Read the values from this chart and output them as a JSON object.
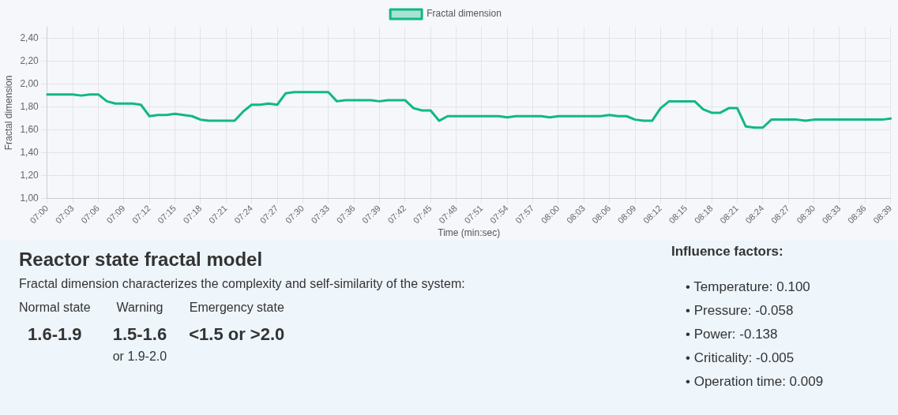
{
  "chart_data": [
    {
      "type": "line",
      "xlabel": "Time (min:sec)",
      "ylabel": "Fractal dimension",
      "categories": [
        "07:00",
        null,
        null,
        "07:03",
        null,
        null,
        "07:06",
        null,
        null,
        "07:09",
        null,
        null,
        "07:12",
        null,
        null,
        "07:15",
        null,
        null,
        "07:18",
        null,
        null,
        "07:21",
        null,
        null,
        "07:24",
        null,
        null,
        "07:27",
        null,
        null,
        "07:30",
        null,
        null,
        "07:33",
        null,
        null,
        "07:36",
        null,
        null,
        "07:39",
        null,
        null,
        "07:42",
        null,
        null,
        "07:45",
        null,
        null,
        "07:48",
        null,
        null,
        "07:51",
        null,
        null,
        "07:54",
        null,
        null,
        "07:57",
        null,
        null,
        "08:00",
        null,
        null,
        "08:03",
        null,
        null,
        "08:06",
        null,
        null,
        "08:09",
        null,
        null,
        "08:12",
        null,
        null,
        "08:15",
        null,
        null,
        "08:18",
        null,
        null,
        "08:21",
        null,
        null,
        "08:24",
        null,
        null,
        "08:27",
        null,
        null,
        "08:30",
        null,
        null,
        "08:33",
        null,
        null,
        "08:36",
        null,
        null,
        "08:39"
      ],
      "series": [
        {
          "name": "Fractal dimension",
          "color": "#10b981",
          "values": [
            1.91,
            1.91,
            1.91,
            1.91,
            1.9,
            1.91,
            1.91,
            1.85,
            1.83,
            1.83,
            1.83,
            1.82,
            1.72,
            1.73,
            1.73,
            1.74,
            1.73,
            1.72,
            1.69,
            1.68,
            1.68,
            1.68,
            1.68,
            1.76,
            1.82,
            1.82,
            1.83,
            1.82,
            1.92,
            1.93,
            1.93,
            1.93,
            1.93,
            1.93,
            1.85,
            1.86,
            1.86,
            1.86,
            1.86,
            1.85,
            1.86,
            1.86,
            1.86,
            1.79,
            1.77,
            1.77,
            1.68,
            1.72,
            1.72,
            1.72,
            1.72,
            1.72,
            1.72,
            1.72,
            1.71,
            1.72,
            1.72,
            1.72,
            1.72,
            1.71,
            1.72,
            1.72,
            1.72,
            1.72,
            1.72,
            1.72,
            1.73,
            1.72,
            1.72,
            1.69,
            1.68,
            1.68,
            1.79,
            1.85,
            1.85,
            1.85,
            1.85,
            1.78,
            1.75,
            1.75,
            1.79,
            1.79,
            1.63,
            1.62,
            1.62,
            1.69,
            1.69,
            1.69,
            1.69,
            1.68,
            1.69,
            1.69,
            1.69,
            1.69,
            1.69,
            1.69,
            1.69,
            1.69,
            1.69,
            1.7
          ]
        }
      ],
      "ylim": [
        1.0,
        2.5
      ],
      "yticks": [
        {
          "value": 1.0,
          "label": "1,00"
        },
        {
          "value": 1.2,
          "label": "1,20"
        },
        {
          "value": 1.4,
          "label": "1,40"
        },
        {
          "value": 1.6,
          "label": "1,60"
        },
        {
          "value": 1.8,
          "label": "1,80"
        },
        {
          "value": 2.0,
          "label": "2,00"
        },
        {
          "value": 2.2,
          "label": "2,20"
        },
        {
          "value": 2.4,
          "label": "2,40"
        }
      ],
      "grid": true,
      "legend": "top",
      "marker": "none",
      "line_style": "solid"
    },
    {
      "type": "other",
      "title": "Reactor state fractal model",
      "subtitle": "Fractal dimension characterizes the complexity and self-similarity of the system:",
      "annotations": [
        "Normal state",
        "1.6-1.9",
        "Warning",
        "1.5-1.6",
        "or 1.9-2.0",
        "Emergency state",
        "<1.5 or >2.0"
      ]
    },
    {
      "type": "other",
      "title": "Influence factors:",
      "annotations": [
        "• Temperature: 0.100",
        "• Pressure: -0.058",
        "• Power: -0.138",
        "• Criticality: -0.005",
        "• Operation time: 0.009"
      ]
    }
  ]
}
